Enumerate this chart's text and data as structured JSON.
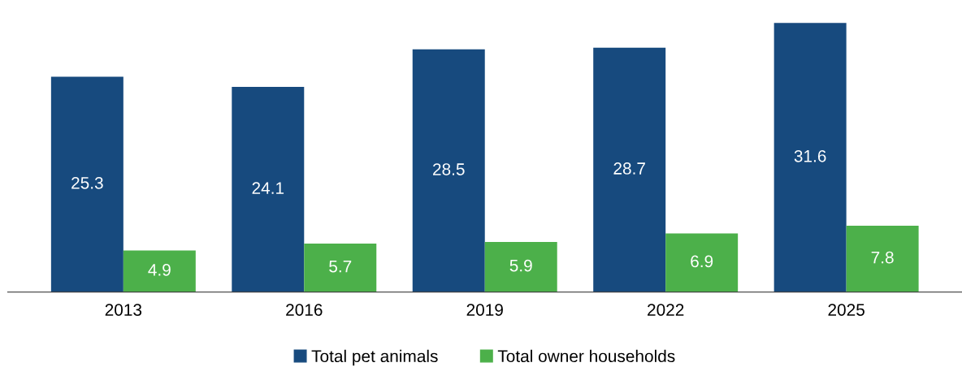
{
  "chart_data": {
    "type": "bar",
    "categories": [
      "2013",
      "2016",
      "2019",
      "2022",
      "2025"
    ],
    "series": [
      {
        "name": "Total pet animals",
        "color": "#174a7e",
        "values": [
          25.3,
          24.1,
          28.5,
          28.7,
          31.6
        ]
      },
      {
        "name": "Total owner households",
        "color": "#4cb04a",
        "values": [
          4.9,
          5.7,
          5.9,
          6.9,
          7.8
        ]
      }
    ],
    "data_labels": true,
    "legend": "bottom",
    "grid": false,
    "tick_labels": "x"
  }
}
